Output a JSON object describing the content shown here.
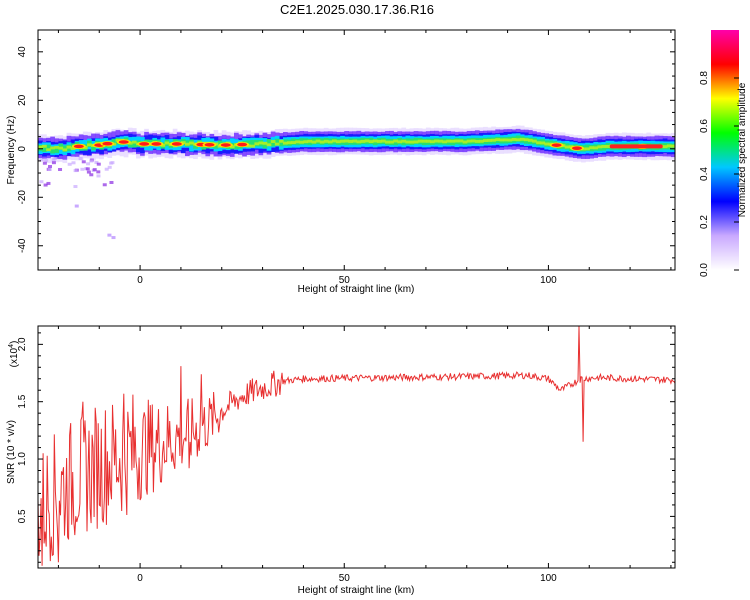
{
  "chart_data": [
    {
      "type": "heatmap",
      "title": "C2E1.2025.030.17.36.R16",
      "xlabel": "Height of straight line (km)",
      "ylabel": "Frequency (Hz)",
      "xlim": [
        -25,
        131
      ],
      "ylim": [
        -50,
        49
      ],
      "xticks": [
        0,
        50,
        100
      ],
      "xtick_labels": [
        "0",
        "50",
        "100"
      ],
      "yticks": [
        40,
        20,
        0,
        -20,
        -40
      ],
      "ytick_labels": [
        "40",
        "20",
        "0",
        "-20",
        "-40"
      ],
      "band": {
        "description": "spectral energy concentrated near 0-3 Hz across all heights",
        "center_freq_hz": [
          [
            -25,
            0.5
          ],
          [
            -20,
            0
          ],
          [
            -15,
            1
          ],
          [
            -10,
            1.5
          ],
          [
            -5,
            3
          ],
          [
            0,
            2
          ],
          [
            10,
            2
          ],
          [
            20,
            1.5
          ],
          [
            30,
            2
          ],
          [
            40,
            3
          ],
          [
            60,
            3
          ],
          [
            80,
            3
          ],
          [
            93,
            4
          ],
          [
            100,
            2
          ],
          [
            108,
            0
          ],
          [
            115,
            1
          ],
          [
            131,
            1
          ]
        ],
        "hot_spots_km": [
          -15,
          -10,
          -8,
          -4,
          1,
          4,
          9,
          15,
          17,
          21,
          25,
          102,
          107,
          123
        ]
      },
      "colorbar": {
        "label": "Normalized spectral amplitude",
        "range": [
          0,
          1
        ],
        "ticks": [
          0.0,
          0.2,
          0.4,
          0.6,
          0.8
        ],
        "tick_labels": [
          "0.0",
          "0.2",
          "0.4",
          "0.6",
          "0.8"
        ],
        "stops": [
          "#ffffff",
          "#c9a9ff",
          "#0000ff",
          "#00c8ff",
          "#00ff00",
          "#ffff00",
          "#ff0000",
          "#ff00aa"
        ]
      }
    },
    {
      "type": "line",
      "xlabel": "Height of straight line (km)",
      "ylabel": "SNR (10 * v/v)",
      "multiplier": "(x10",
      "multiplier_exp": "4",
      "multiplier_close": ")",
      "xlim": [
        -25,
        131
      ],
      "ylim": [
        0.05,
        2.16
      ],
      "xticks": [
        0,
        50,
        100
      ],
      "xtick_labels": [
        "0",
        "50",
        "100"
      ],
      "yticks": [
        0.5,
        1.0,
        1.5,
        2.0
      ],
      "ytick_labels": [
        "0.5",
        "1.0",
        "1.5",
        "2.0"
      ],
      "series": [
        {
          "name": "SNR",
          "color": "#e83030",
          "trend": [
            [
              -25,
              0.55
            ],
            [
              -20,
              0.72
            ],
            [
              -15,
              0.85
            ],
            [
              -10,
              0.95
            ],
            [
              -5,
              1.02
            ],
            [
              0,
              1.08
            ],
            [
              5,
              1.14
            ],
            [
              10,
              1.2
            ],
            [
              15,
              1.27
            ],
            [
              20,
              1.42
            ],
            [
              25,
              1.55
            ],
            [
              30,
              1.62
            ],
            [
              35,
              1.68
            ],
            [
              40,
              1.7
            ],
            [
              60,
              1.71
            ],
            [
              80,
              1.72
            ],
            [
              95,
              1.73
            ],
            [
              100,
              1.7
            ],
            [
              103,
              1.6
            ],
            [
              106,
              1.66
            ],
            [
              108,
              1.7
            ],
            [
              112,
              1.71
            ],
            [
              131,
              1.69
            ]
          ],
          "spikes": [
            [
              -24,
              0.07
            ],
            [
              -20,
              0.1
            ],
            [
              -14,
              1.5
            ],
            [
              -4,
              1.57
            ],
            [
              10,
              1.81
            ],
            [
              12,
              0.92
            ],
            [
              15,
              1.74
            ],
            [
              107.5,
              2.16
            ],
            [
              108.5,
              1.15
            ]
          ]
        }
      ]
    }
  ]
}
